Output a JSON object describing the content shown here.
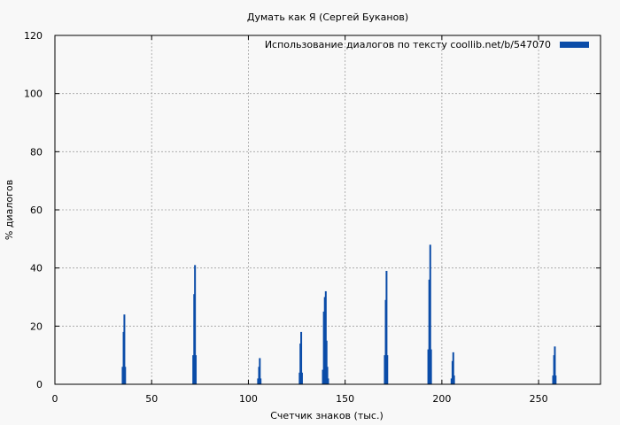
{
  "chart_data": {
    "type": "bar",
    "title": "Думать как Я (Сергей Буканов)",
    "xlabel": "Счетчик знаков (тыс.)",
    "ylabel": "% диалогов",
    "xlim": [
      0,
      282
    ],
    "ylim": [
      0,
      120
    ],
    "xticks": [
      "0",
      "50",
      "100",
      "150",
      "200",
      "250"
    ],
    "xtick_values": [
      0,
      50,
      100,
      150,
      200,
      250
    ],
    "yticks": [
      "0",
      "20",
      "40",
      "60",
      "80",
      "100",
      "120"
    ],
    "ytick_values": [
      0,
      20,
      40,
      60,
      80,
      100,
      120
    ],
    "grid": true,
    "legend_position": "top-right",
    "series": [
      {
        "name": "Использование диалогов по тексту  coollib.net/b/547070",
        "color": "#0b4ca8",
        "points": [
          {
            "x": 35.0,
            "y": 6
          },
          {
            "x": 35.5,
            "y": 18
          },
          {
            "x": 35.9,
            "y": 24
          },
          {
            "x": 36.3,
            "y": 6
          },
          {
            "x": 71.5,
            "y": 10
          },
          {
            "x": 72.0,
            "y": 31
          },
          {
            "x": 72.4,
            "y": 41
          },
          {
            "x": 72.8,
            "y": 10
          },
          {
            "x": 105.0,
            "y": 2
          },
          {
            "x": 105.5,
            "y": 6
          },
          {
            "x": 105.9,
            "y": 9
          },
          {
            "x": 106.3,
            "y": 2
          },
          {
            "x": 126.5,
            "y": 4
          },
          {
            "x": 126.9,
            "y": 14
          },
          {
            "x": 127.3,
            "y": 18
          },
          {
            "x": 127.7,
            "y": 4
          },
          {
            "x": 138.5,
            "y": 5
          },
          {
            "x": 139.0,
            "y": 25
          },
          {
            "x": 139.5,
            "y": 30
          },
          {
            "x": 140.0,
            "y": 32
          },
          {
            "x": 140.4,
            "y": 15
          },
          {
            "x": 140.8,
            "y": 6
          },
          {
            "x": 141.2,
            "y": 2
          },
          {
            "x": 170.5,
            "y": 10
          },
          {
            "x": 171.0,
            "y": 29
          },
          {
            "x": 171.4,
            "y": 39
          },
          {
            "x": 171.8,
            "y": 10
          },
          {
            "x": 193.0,
            "y": 12
          },
          {
            "x": 193.5,
            "y": 36
          },
          {
            "x": 194.0,
            "y": 48
          },
          {
            "x": 194.4,
            "y": 12
          },
          {
            "x": 205.0,
            "y": 2
          },
          {
            "x": 205.5,
            "y": 8
          },
          {
            "x": 205.9,
            "y": 11
          },
          {
            "x": 206.3,
            "y": 3
          },
          {
            "x": 257.5,
            "y": 3
          },
          {
            "x": 258.0,
            "y": 10
          },
          {
            "x": 258.4,
            "y": 13
          },
          {
            "x": 258.8,
            "y": 3
          }
        ]
      }
    ]
  }
}
